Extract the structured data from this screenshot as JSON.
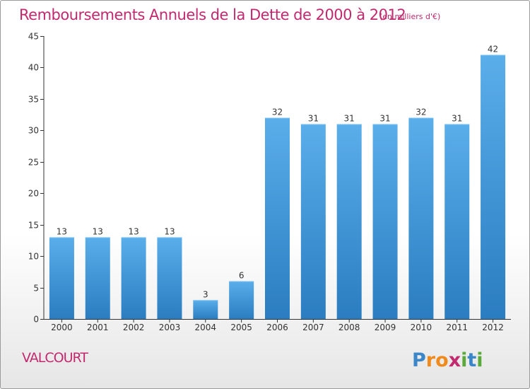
{
  "header": {
    "title": "Remboursements Annuels de la Dette de 2000 à 2012",
    "subtitle": "(en milliers d'€)"
  },
  "footer": {
    "commune": "VALCOURT",
    "logo_text": "Proxiti"
  },
  "colors": {
    "title": "#c2296e",
    "bar_top": "#5aaeea",
    "bar_bottom": "#2a7dc0",
    "axis": "#333333",
    "grid": "#dddddd"
  },
  "chart_data": {
    "type": "bar",
    "title": "Remboursements Annuels de la Dette de 2000 à 2012",
    "subtitle": "(en milliers d'€)",
    "xlabel": "",
    "ylabel": "",
    "categories": [
      "2000",
      "2001",
      "2002",
      "2003",
      "2004",
      "2005",
      "2006",
      "2007",
      "2008",
      "2009",
      "2010",
      "2011",
      "2012"
    ],
    "values": [
      13,
      13,
      13,
      13,
      3,
      6,
      32,
      31,
      31,
      31,
      32,
      31,
      42
    ],
    "data_labels": [
      "13",
      "13",
      "13",
      "13",
      "3",
      "6",
      "32",
      "31",
      "31",
      "31",
      "32",
      "31",
      "42"
    ],
    "ylim": [
      0,
      45
    ],
    "yticks": [
      0,
      5,
      10,
      15,
      20,
      25,
      30,
      35,
      40,
      45
    ],
    "grid": false,
    "legend": "none"
  }
}
